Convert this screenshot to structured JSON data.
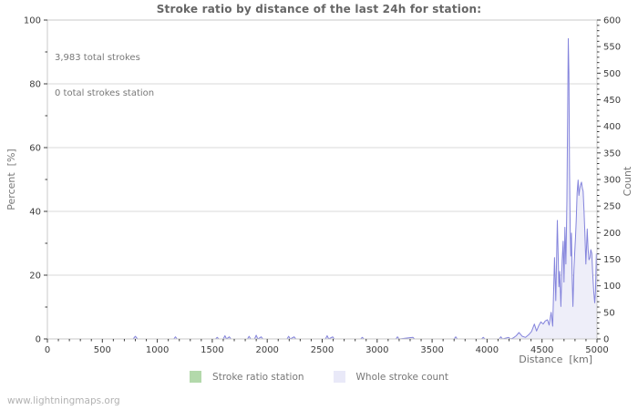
{
  "title": "Stroke ratio by distance of the last 24h for station:",
  "annotation": {
    "line1": "3,983 total strokes",
    "line2": "0 total strokes station"
  },
  "axes": {
    "y_left_label": "Percent  [%]",
    "y_right_label": "Count",
    "x_label": "Distance  [km]"
  },
  "legend": {
    "items": [
      {
        "label": "Stroke ratio station",
        "color": "#b3d9ab"
      },
      {
        "label": "Whole stroke count",
        "color": "#e9e9f8"
      }
    ]
  },
  "footer": "www.lightningmaps.org",
  "colors": {
    "grid": "#d9d9d9",
    "border": "#c8c8c8",
    "tick": "#3c3c3c",
    "line": "#8484dc",
    "fill": "#eeeef9",
    "station_line": "#b3d9ab"
  },
  "chart_data": {
    "type": "area",
    "title": "Stroke ratio by distance of the last 24h for station:",
    "xlabel": "Distance [km]",
    "ylabel_left": "Percent [%]",
    "ylabel_right": "Count",
    "x_axis": {
      "min": 0,
      "max": 5000,
      "major_step": 500,
      "minor_step": 100
    },
    "y_left": {
      "min": 0,
      "max": 100,
      "major_step": 20,
      "minor_step": 10
    },
    "y_right": {
      "min": 0,
      "max": 600,
      "major_step": 50,
      "minor_step": 10
    },
    "gridlines_percent": [
      20,
      40,
      60,
      80
    ],
    "legend_position": "bottom-center",
    "totals": {
      "total_strokes": 3983,
      "total_strokes_station": 0
    },
    "series": [
      {
        "name": "Stroke ratio station",
        "axis": "left",
        "note": "station recorded 0 strokes; ratio flat at 0%",
        "points": [
          [
            0,
            0
          ],
          [
            5000,
            0
          ]
        ]
      },
      {
        "name": "Whole stroke count",
        "axis": "right",
        "points": [
          [
            0,
            0
          ],
          [
            780,
            0
          ],
          [
            800,
            5
          ],
          [
            820,
            0
          ],
          [
            1150,
            0
          ],
          [
            1165,
            4
          ],
          [
            1180,
            0
          ],
          [
            1530,
            0
          ],
          [
            1545,
            3
          ],
          [
            1560,
            0
          ],
          [
            1600,
            0
          ],
          [
            1615,
            6
          ],
          [
            1630,
            0
          ],
          [
            1655,
            4
          ],
          [
            1670,
            0
          ],
          [
            1820,
            0
          ],
          [
            1835,
            5
          ],
          [
            1850,
            0
          ],
          [
            1885,
            0
          ],
          [
            1900,
            7
          ],
          [
            1915,
            0
          ],
          [
            1945,
            4
          ],
          [
            1960,
            0
          ],
          [
            2180,
            0
          ],
          [
            2195,
            5
          ],
          [
            2210,
            0
          ],
          [
            2245,
            4
          ],
          [
            2260,
            0
          ],
          [
            2530,
            0
          ],
          [
            2545,
            6
          ],
          [
            2560,
            0
          ],
          [
            2595,
            4
          ],
          [
            2610,
            0
          ],
          [
            2850,
            0
          ],
          [
            2865,
            3
          ],
          [
            2880,
            0
          ],
          [
            3170,
            0
          ],
          [
            3185,
            4
          ],
          [
            3200,
            0
          ],
          [
            3325,
            3
          ],
          [
            3340,
            0
          ],
          [
            3700,
            0
          ],
          [
            3715,
            4
          ],
          [
            3730,
            0
          ],
          [
            3950,
            0
          ],
          [
            3965,
            3
          ],
          [
            3980,
            0
          ],
          [
            4110,
            0
          ],
          [
            4125,
            4
          ],
          [
            4140,
            0
          ],
          [
            4195,
            3
          ],
          [
            4215,
            0
          ],
          [
            4240,
            2
          ],
          [
            4265,
            6
          ],
          [
            4290,
            12
          ],
          [
            4320,
            5
          ],
          [
            4350,
            3
          ],
          [
            4380,
            8
          ],
          [
            4405,
            14
          ],
          [
            4430,
            28
          ],
          [
            4450,
            15
          ],
          [
            4470,
            25
          ],
          [
            4490,
            32
          ],
          [
            4510,
            28
          ],
          [
            4530,
            34
          ],
          [
            4550,
            36
          ],
          [
            4565,
            26
          ],
          [
            4583,
            50
          ],
          [
            4597,
            24
          ],
          [
            4614,
            153
          ],
          [
            4625,
            72
          ],
          [
            4639,
            223
          ],
          [
            4653,
            98
          ],
          [
            4661,
            127
          ],
          [
            4672,
            61
          ],
          [
            4683,
            148
          ],
          [
            4692,
            184
          ],
          [
            4700,
            107
          ],
          [
            4708,
            210
          ],
          [
            4717,
            141
          ],
          [
            4726,
            260
          ],
          [
            4733,
            420
          ],
          [
            4739,
            565
          ],
          [
            4745,
            500
          ],
          [
            4750,
            310
          ],
          [
            4756,
            210
          ],
          [
            4762,
            156
          ],
          [
            4768,
            199
          ],
          [
            4774,
            120
          ],
          [
            4781,
            61
          ],
          [
            4790,
            130
          ],
          [
            4797,
            160
          ],
          [
            4804,
            190
          ],
          [
            4811,
            222
          ],
          [
            4819,
            275
          ],
          [
            4828,
            299
          ],
          [
            4836,
            270
          ],
          [
            4843,
            283
          ],
          [
            4851,
            290
          ],
          [
            4859,
            295
          ],
          [
            4867,
            283
          ],
          [
            4874,
            278
          ],
          [
            4882,
            240
          ],
          [
            4890,
            200
          ],
          [
            4899,
            141
          ],
          [
            4911,
            207
          ],
          [
            4919,
            170
          ],
          [
            4927,
            149
          ],
          [
            4936,
            153
          ],
          [
            4944,
            168
          ],
          [
            4953,
            161
          ],
          [
            4962,
            120
          ],
          [
            4971,
            88
          ],
          [
            4979,
            68
          ],
          [
            4987,
            90
          ],
          [
            4994,
            160
          ],
          [
            5000,
            150
          ]
        ]
      }
    ]
  }
}
